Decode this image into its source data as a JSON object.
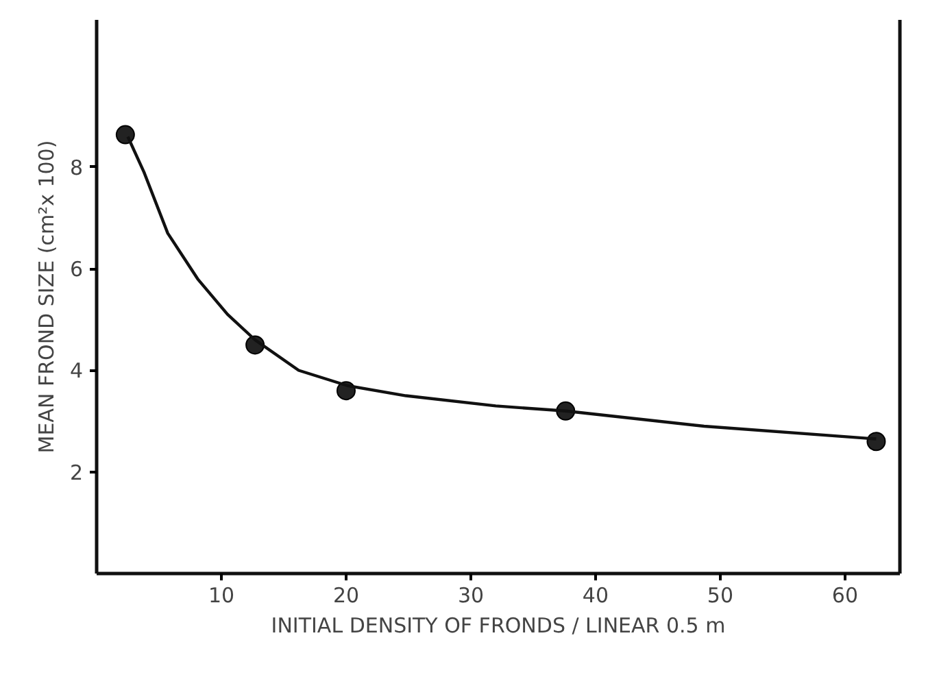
{
  "chart_data": {
    "type": "scatter",
    "xlabel": "INITIAL DENSITY OF FRONDS / LINEAR 0.5 m",
    "ylabel": "MEAN FROND SIZE (cm²x 100)",
    "xlim": [
      0,
      64.4
    ],
    "ylim": [
      0,
      10.9
    ],
    "xticks": [
      10,
      20,
      30,
      40,
      50,
      60
    ],
    "yticks": [
      2,
      4,
      6,
      8
    ],
    "grid": false,
    "marker": "circle",
    "series": [
      {
        "color": "#222222",
        "x": [
          2.3,
          12.7,
          20,
          37.6,
          62.5
        ],
        "values": [
          8.64,
          4.5,
          3.6,
          3.2,
          2.6
        ]
      },
      {
        "type": "line",
        "color": "#111111",
        "marker": "none",
        "line_style": "solid",
        "x": [
          2.5,
          3.8,
          5.7,
          8.1,
          10.5,
          12.7,
          16.2,
          20.1,
          24.8,
          32,
          37.6,
          48.7,
          62.5
        ],
        "values": [
          8.6,
          7.9,
          6.7,
          5.8,
          5.1,
          4.6,
          4.0,
          3.7,
          3.5,
          3.3,
          3.2,
          2.9,
          2.65
        ]
      }
    ]
  }
}
